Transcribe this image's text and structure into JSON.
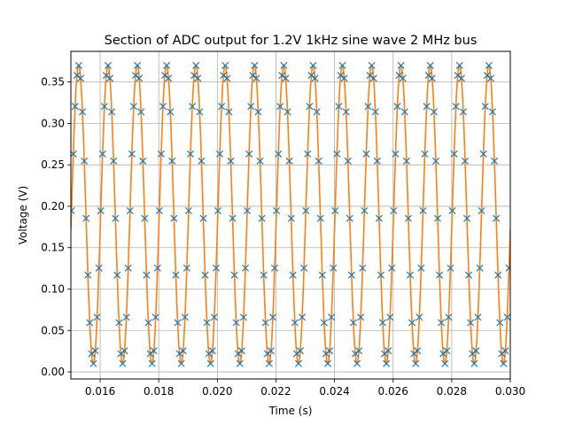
{
  "chart_data": {
    "type": "line",
    "title": "Section of ADC output for 1.2V 1kHz sine wave 2 MHz bus",
    "xlabel": "Time (s)",
    "ylabel": "Voltage (V)",
    "xlim": [
      0.015,
      0.03
    ],
    "ylim": [
      -0.0085,
      0.387
    ],
    "xticks": [
      0.016,
      0.018,
      0.02,
      0.022,
      0.024,
      0.026,
      0.028,
      0.03
    ],
    "xtick_labels": [
      "0.016",
      "0.018",
      "0.020",
      "0.022",
      "0.024",
      "0.026",
      "0.028",
      "0.030"
    ],
    "yticks": [
      0.0,
      0.05,
      0.1,
      0.15,
      0.2,
      0.25,
      0.3,
      0.35
    ],
    "ytick_labels": [
      "0.00",
      "0.05",
      "0.10",
      "0.15",
      "0.20",
      "0.25",
      "0.30",
      "0.35"
    ],
    "grid": true,
    "signal": {
      "offset_v": 0.19,
      "amplitude_v": 0.18,
      "frequency_hz": 1000,
      "phase_rad": -0.1,
      "x_start": 0.015,
      "x_end": 0.03
    },
    "series": [
      {
        "type": "scatter",
        "marker": "x",
        "color": "#1f77b4",
        "sample_interval_s": 6.25e-05,
        "sample_start_s": 0.01502
      },
      {
        "type": "line",
        "color": "#ff7f0e",
        "line_step_s": 2e-05
      }
    ]
  }
}
